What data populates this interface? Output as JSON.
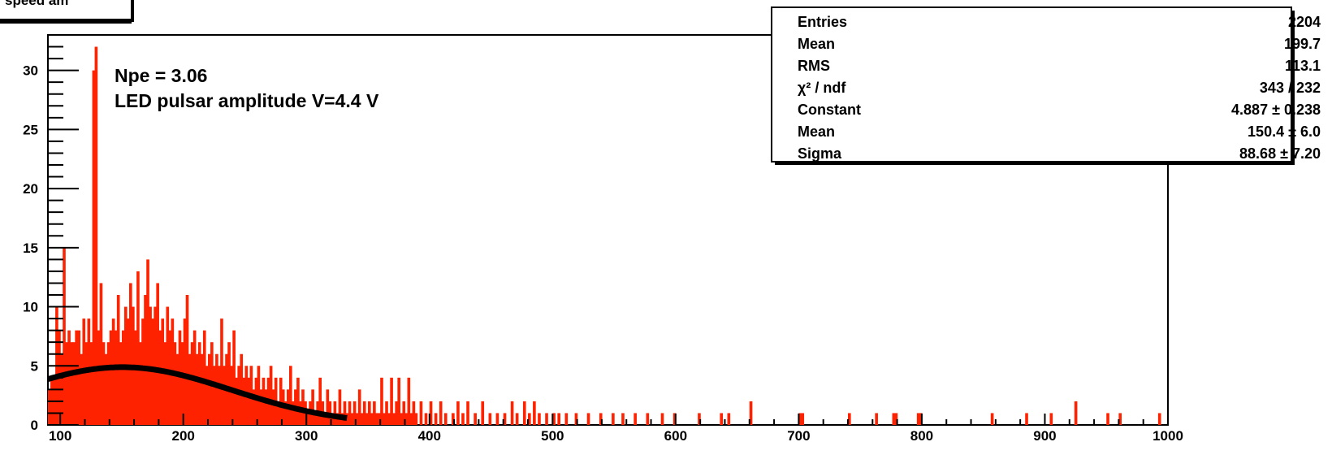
{
  "title_box": {
    "text": "speed am"
  },
  "chart_data": {
    "type": "bar",
    "x_range": [
      90,
      1000
    ],
    "y_range": [
      0,
      33
    ],
    "grid": false,
    "x_ticks": [
      100,
      200,
      300,
      400,
      500,
      600,
      700,
      800,
      900,
      1000
    ],
    "y_ticks": [
      0,
      5,
      10,
      15,
      20,
      25,
      30
    ],
    "bin_width": 2,
    "bar_color": "#ff2200",
    "fit_color": "#000000",
    "annotations": [
      "Npe = 3.06",
      "LED pulsar amplitude V=4.4 V"
    ],
    "bins": [
      [
        90,
        3
      ],
      [
        92,
        4
      ],
      [
        94,
        4
      ],
      [
        96,
        10
      ],
      [
        98,
        8
      ],
      [
        100,
        6
      ],
      [
        102,
        15
      ],
      [
        104,
        7
      ],
      [
        106,
        8
      ],
      [
        108,
        7
      ],
      [
        110,
        7
      ],
      [
        112,
        8
      ],
      [
        114,
        8
      ],
      [
        116,
        6
      ],
      [
        118,
        9
      ],
      [
        120,
        7
      ],
      [
        122,
        9
      ],
      [
        124,
        7
      ],
      [
        126,
        30
      ],
      [
        128,
        32
      ],
      [
        130,
        8
      ],
      [
        132,
        12
      ],
      [
        134,
        7
      ],
      [
        136,
        6
      ],
      [
        138,
        7
      ],
      [
        140,
        8
      ],
      [
        142,
        9
      ],
      [
        144,
        8
      ],
      [
        146,
        11
      ],
      [
        148,
        7
      ],
      [
        150,
        8
      ],
      [
        152,
        10
      ],
      [
        154,
        9
      ],
      [
        156,
        12
      ],
      [
        158,
        10
      ],
      [
        160,
        8
      ],
      [
        162,
        13
      ],
      [
        164,
        7
      ],
      [
        166,
        9
      ],
      [
        168,
        11
      ],
      [
        170,
        14
      ],
      [
        172,
        10
      ],
      [
        174,
        9
      ],
      [
        176,
        10
      ],
      [
        178,
        12
      ],
      [
        180,
        8
      ],
      [
        182,
        9
      ],
      [
        184,
        7
      ],
      [
        186,
        10
      ],
      [
        188,
        8
      ],
      [
        190,
        9
      ],
      [
        192,
        7
      ],
      [
        194,
        6
      ],
      [
        196,
        8
      ],
      [
        198,
        7
      ],
      [
        200,
        9
      ],
      [
        202,
        11
      ],
      [
        204,
        6
      ],
      [
        206,
        7
      ],
      [
        208,
        8
      ],
      [
        210,
        6
      ],
      [
        212,
        7
      ],
      [
        214,
        6
      ],
      [
        216,
        8
      ],
      [
        218,
        5
      ],
      [
        220,
        6
      ],
      [
        222,
        7
      ],
      [
        224,
        5
      ],
      [
        226,
        6
      ],
      [
        228,
        5
      ],
      [
        230,
        9
      ],
      [
        232,
        5
      ],
      [
        234,
        6
      ],
      [
        236,
        7
      ],
      [
        238,
        5
      ],
      [
        240,
        8
      ],
      [
        242,
        4
      ],
      [
        244,
        5
      ],
      [
        246,
        6
      ],
      [
        248,
        4
      ],
      [
        250,
        5
      ],
      [
        252,
        4
      ],
      [
        254,
        5
      ],
      [
        256,
        3
      ],
      [
        258,
        4
      ],
      [
        260,
        5
      ],
      [
        262,
        3
      ],
      [
        264,
        4
      ],
      [
        266,
        3
      ],
      [
        268,
        4
      ],
      [
        270,
        5
      ],
      [
        272,
        3
      ],
      [
        274,
        4
      ],
      [
        276,
        2
      ],
      [
        278,
        4
      ],
      [
        280,
        3
      ],
      [
        282,
        2
      ],
      [
        284,
        3
      ],
      [
        286,
        5
      ],
      [
        288,
        2
      ],
      [
        290,
        3
      ],
      [
        292,
        4
      ],
      [
        294,
        2
      ],
      [
        296,
        3
      ],
      [
        298,
        2
      ],
      [
        300,
        1
      ],
      [
        302,
        2
      ],
      [
        304,
        3
      ],
      [
        306,
        1
      ],
      [
        308,
        2
      ],
      [
        310,
        4
      ],
      [
        312,
        2
      ],
      [
        314,
        1
      ],
      [
        316,
        3
      ],
      [
        318,
        2
      ],
      [
        320,
        1
      ],
      [
        322,
        2
      ],
      [
        324,
        1
      ],
      [
        326,
        3
      ],
      [
        328,
        1
      ],
      [
        330,
        2
      ],
      [
        332,
        1
      ],
      [
        334,
        2
      ],
      [
        336,
        1
      ],
      [
        338,
        2
      ],
      [
        340,
        1
      ],
      [
        342,
        3
      ],
      [
        344,
        1
      ],
      [
        346,
        2
      ],
      [
        348,
        1
      ],
      [
        350,
        2
      ],
      [
        352,
        1
      ],
      [
        354,
        2
      ],
      [
        356,
        1
      ],
      [
        358,
        1
      ],
      [
        360,
        4
      ],
      [
        362,
        1
      ],
      [
        364,
        2
      ],
      [
        366,
        1
      ],
      [
        368,
        4
      ],
      [
        370,
        1
      ],
      [
        372,
        2
      ],
      [
        374,
        4
      ],
      [
        376,
        1
      ],
      [
        378,
        2
      ],
      [
        380,
        1
      ],
      [
        382,
        4
      ],
      [
        384,
        1
      ],
      [
        386,
        2
      ],
      [
        388,
        1
      ],
      [
        392,
        2
      ],
      [
        396,
        1
      ],
      [
        400,
        2
      ],
      [
        404,
        1
      ],
      [
        408,
        2
      ],
      [
        412,
        1
      ],
      [
        418,
        1
      ],
      [
        422,
        2
      ],
      [
        426,
        1
      ],
      [
        430,
        2
      ],
      [
        436,
        1
      ],
      [
        442,
        2
      ],
      [
        448,
        1
      ],
      [
        454,
        1
      ],
      [
        460,
        1
      ],
      [
        466,
        2
      ],
      [
        470,
        1
      ],
      [
        476,
        2
      ],
      [
        480,
        1
      ],
      [
        484,
        2
      ],
      [
        488,
        1
      ],
      [
        494,
        1
      ],
      [
        500,
        1
      ],
      [
        504,
        1
      ],
      [
        510,
        1
      ],
      [
        518,
        1
      ],
      [
        528,
        1
      ],
      [
        538,
        1
      ],
      [
        548,
        1
      ],
      [
        556,
        1
      ],
      [
        566,
        1
      ],
      [
        576,
        1
      ],
      [
        588,
        1
      ],
      [
        598,
        1
      ],
      [
        618,
        1
      ],
      [
        636,
        1
      ],
      [
        642,
        1
      ],
      [
        660,
        2
      ],
      [
        700,
        1
      ],
      [
        702,
        1
      ],
      [
        740,
        1
      ],
      [
        762,
        1
      ],
      [
        776,
        1
      ],
      [
        778,
        1
      ],
      [
        796,
        1
      ],
      [
        798,
        1
      ],
      [
        856,
        1
      ],
      [
        884,
        1
      ],
      [
        904,
        1
      ],
      [
        924,
        2
      ],
      [
        950,
        1
      ],
      [
        960,
        1
      ],
      [
        992,
        1
      ]
    ],
    "fit": {
      "model": "gaussian",
      "constant": 4.887,
      "mean": 150.4,
      "sigma": 88.68,
      "x_range": [
        90,
        333
      ]
    },
    "stats_box": {
      "rows": [
        {
          "label": "Entries",
          "value": "2204"
        },
        {
          "label": "Mean",
          "value": "199.7"
        },
        {
          "label": "RMS",
          "value": "113.1"
        },
        {
          "label": "χ² / ndf",
          "value": "343 / 232"
        },
        {
          "label": "Constant",
          "value": "4.887 ± 0.238"
        },
        {
          "label": "Mean",
          "value": "150.4 ± 6.0"
        },
        {
          "label": "Sigma",
          "value": "88.68 ± 7.20"
        }
      ]
    }
  }
}
